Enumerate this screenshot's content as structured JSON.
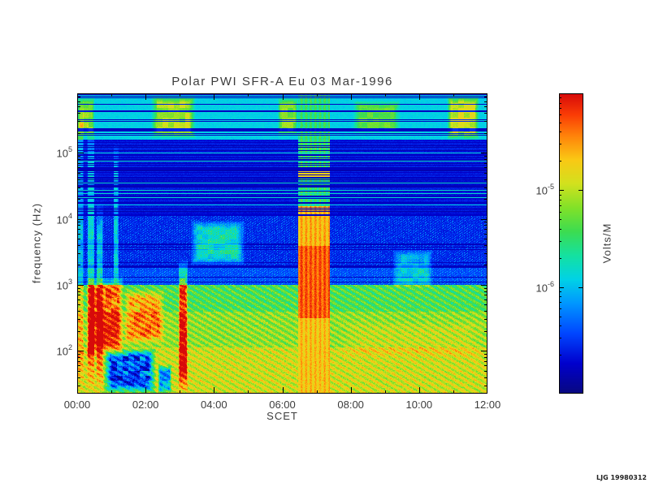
{
  "credit": "LJG 19980312",
  "chart_data": {
    "type": "heatmap",
    "title": "Polar PWI SFR-A Eu  03 Mar-1996",
    "xlabel": "SCET",
    "ylabel": "frequency (Hz)",
    "colorbar_label": "Volts/M",
    "x_range_hours": [
      0,
      12
    ],
    "y_log_range": [
      1.35,
      5.9
    ],
    "x_ticks": [
      {
        "label": "00:00",
        "hours": 0
      },
      {
        "label": "02:00",
        "hours": 2
      },
      {
        "label": "04:00",
        "hours": 4
      },
      {
        "label": "06:00",
        "hours": 6
      },
      {
        "label": "08:00",
        "hours": 8
      },
      {
        "label": "10:00",
        "hours": 10
      },
      {
        "label": "12:00",
        "hours": 12
      }
    ],
    "y_ticks": [
      {
        "label": "10^5",
        "logf": 5
      },
      {
        "label": "10^4",
        "logf": 4
      },
      {
        "label": "10^3",
        "logf": 3
      },
      {
        "label": "10^2",
        "logf": 2
      }
    ],
    "colorbar_log_range": [
      -7.1,
      -4.0
    ],
    "colorbar_ticks": [
      {
        "label": "10^-5",
        "log10": -5
      },
      {
        "label": "10^-6",
        "log10": -6
      }
    ],
    "palette_stops": [
      {
        "p": 0.0,
        "c": [
          8,
          8,
          128
        ]
      },
      {
        "p": 0.1,
        "c": [
          0,
          0,
          205
        ]
      },
      {
        "p": 0.2,
        "c": [
          0,
          70,
          255
        ]
      },
      {
        "p": 0.3,
        "c": [
          0,
          150,
          255
        ]
      },
      {
        "p": 0.38,
        "c": [
          0,
          210,
          230
        ]
      },
      {
        "p": 0.46,
        "c": [
          20,
          225,
          160
        ]
      },
      {
        "p": 0.54,
        "c": [
          60,
          220,
          80
        ]
      },
      {
        "p": 0.62,
        "c": [
          130,
          225,
          40
        ]
      },
      {
        "p": 0.7,
        "c": [
          210,
          225,
          30
        ]
      },
      {
        "p": 0.78,
        "c": [
          250,
          200,
          20
        ]
      },
      {
        "p": 0.86,
        "c": [
          255,
          130,
          10
        ]
      },
      {
        "p": 0.93,
        "c": [
          250,
          60,
          5
        ]
      },
      {
        "p": 1.0,
        "c": [
          215,
          10,
          10
        ]
      }
    ],
    "bands": [
      {
        "logf": [
          1.35,
          2.05
        ],
        "value": 0.7,
        "texture": "striations",
        "desc": "intense yellow-orange low-frequency band"
      },
      {
        "logf": [
          2.05,
          2.6
        ],
        "value": 0.63,
        "texture": "striations",
        "desc": "yellow-green band with diagonal striations"
      },
      {
        "logf": [
          2.6,
          3.0
        ],
        "value": 0.55,
        "texture": "striations",
        "desc": "green band"
      },
      {
        "logf": [
          3.0,
          3.3
        ],
        "value": 0.2,
        "texture": "speckle",
        "desc": "dark transition band near 1-2 kHz"
      },
      {
        "logf": [
          3.3,
          4.05
        ],
        "value": 0.15,
        "texture": "speckle",
        "desc": "dark blue with cyan speckle"
      },
      {
        "logf": [
          4.05,
          5.2
        ],
        "value": 0.12,
        "texture": "hstripes",
        "desc": "dark blue region with horizontal line banding"
      },
      {
        "logf": [
          5.2,
          5.91
        ],
        "value": 0.38,
        "texture": "hstripes_cyan",
        "desc": "cyan band with dark horizontal striping"
      }
    ],
    "features": [
      {
        "name": "left-edge-column",
        "t": [
          0.0,
          0.18
        ],
        "logf": [
          1.35,
          5.9
        ],
        "amp": 0.22
      },
      {
        "name": "burst-0030",
        "t": [
          0.28,
          0.5
        ],
        "logf": [
          1.35,
          5.5
        ],
        "amp": 0.3
      },
      {
        "name": "burst-0040",
        "t": [
          0.55,
          0.75
        ],
        "logf": [
          1.35,
          4.3
        ],
        "amp": 0.25
      },
      {
        "name": "thin-line-0110",
        "t": [
          1.05,
          1.2
        ],
        "logf": [
          2.9,
          5.15
        ],
        "amp": 0.28
      },
      {
        "name": "red-blobs-early",
        "t": [
          0.25,
          1.35
        ],
        "logf": [
          1.9,
          3.15
        ],
        "amp": 0.42
      },
      {
        "name": "yellow-blobs-0130-0230",
        "t": [
          1.35,
          2.55
        ],
        "logf": [
          2.1,
          2.95
        ],
        "amp": 0.3
      },
      {
        "name": "dark-patch-low-0100-0200",
        "t": [
          0.75,
          2.3
        ],
        "logf": [
          1.35,
          2.05
        ],
        "amp": -0.62
      },
      {
        "name": "dark-patch-low-0230",
        "t": [
          2.35,
          2.75
        ],
        "logf": [
          1.35,
          1.8
        ],
        "amp": -0.45
      },
      {
        "name": "red-spike-0300",
        "t": [
          2.95,
          3.22
        ],
        "logf": [
          1.35,
          3.4
        ],
        "amp": 0.45
      },
      {
        "name": "teal-patch-0330-0450",
        "t": [
          3.3,
          4.9
        ],
        "logf": [
          3.3,
          3.98
        ],
        "amp": 0.33
      },
      {
        "name": "cyan-blob-0930-1020",
        "t": [
          9.2,
          10.4
        ],
        "logf": [
          2.95,
          3.55
        ],
        "amp": 0.22
      },
      {
        "name": "top-patch-0000",
        "t": [
          0.0,
          0.5
        ],
        "logf": [
          5.25,
          5.85
        ],
        "amp": 0.3
      },
      {
        "name": "top-patch-0230",
        "t": [
          2.15,
          3.45
        ],
        "logf": [
          5.22,
          5.88
        ],
        "amp": 0.34
      },
      {
        "name": "top-patch-0600",
        "t": [
          5.85,
          6.45
        ],
        "logf": [
          5.25,
          5.85
        ],
        "amp": 0.28
      },
      {
        "name": "top-patch-0830",
        "t": [
          8.05,
          9.45
        ],
        "logf": [
          5.3,
          5.8
        ],
        "amp": 0.24
      },
      {
        "name": "top-patch-1115",
        "t": [
          10.8,
          11.75
        ],
        "logf": [
          5.2,
          5.88
        ],
        "amp": 0.38
      },
      {
        "name": "late-yellow-patches",
        "t": [
          7.6,
          12.0
        ],
        "logf": [
          1.9,
          2.45
        ],
        "amp": 0.07
      }
    ],
    "storm": {
      "name": "intense-band-0630-0720",
      "t": [
        6.45,
        7.38
      ],
      "profile": [
        {
          "logf": [
            4.2,
            5.91
          ],
          "value": 0.5
        },
        {
          "logf": [
            3.6,
            4.2
          ],
          "value": 0.8
        },
        {
          "logf": [
            2.5,
            3.6
          ],
          "value": 0.9
        },
        {
          "logf": [
            1.35,
            2.5
          ],
          "value": 0.78
        }
      ],
      "yellow_line_logf": [
        4.62,
        4.72
      ],
      "yellow_line_value": 0.73
    }
  }
}
